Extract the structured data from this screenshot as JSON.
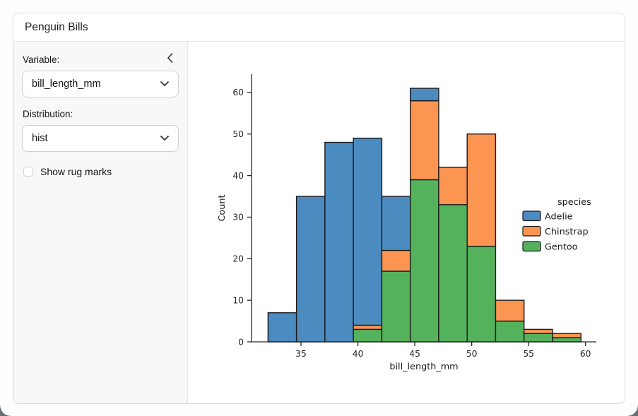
{
  "app": {
    "title": "Penguin Bills"
  },
  "sidebar": {
    "collapse_icon": "chevron-left",
    "variable_label": "Variable:",
    "variable_value": "bill_length_mm",
    "distribution_label": "Distribution:",
    "distribution_value": "hist",
    "rug_label": "Show rug marks",
    "rug_checked": false
  },
  "chart_data": {
    "type": "bar",
    "subtype": "stacked-histogram",
    "title": "",
    "xlabel": "bill_length_mm",
    "ylabel": "Count",
    "bin_edges": [
      32.1,
      34.6,
      37.1,
      39.6,
      42.1,
      44.6,
      47.1,
      49.6,
      52.1,
      54.6,
      57.1,
      59.6
    ],
    "stack_order_bottom_to_top": [
      "Gentoo",
      "Chinstrap",
      "Adelie"
    ],
    "series": [
      {
        "name": "Adelie",
        "color": "#4C8BC0",
        "values": [
          7,
          35,
          48,
          45,
          13,
          3,
          0,
          0,
          0,
          0,
          0
        ]
      },
      {
        "name": "Chinstrap",
        "color": "#FC9551",
        "values": [
          0,
          0,
          0,
          1,
          5,
          19,
          9,
          27,
          5,
          1,
          1
        ]
      },
      {
        "name": "Gentoo",
        "color": "#55B25C",
        "values": [
          0,
          0,
          0,
          3,
          17,
          39,
          33,
          23,
          5,
          2,
          1
        ]
      }
    ],
    "bin_totals": [
      7,
      35,
      48,
      49,
      35,
      61,
      42,
      50,
      10,
      3,
      2
    ],
    "x_ticks": [
      35,
      40,
      45,
      50,
      55,
      60
    ],
    "y_ticks": [
      0,
      10,
      20,
      30,
      40,
      50,
      60
    ],
    "xlim": [
      30.65,
      60.95
    ],
    "ylim": [
      0,
      64.4
    ],
    "grid": false,
    "legend": {
      "title": "species",
      "position": "right",
      "frame": false
    },
    "edge_color": "#1a1a1a"
  }
}
